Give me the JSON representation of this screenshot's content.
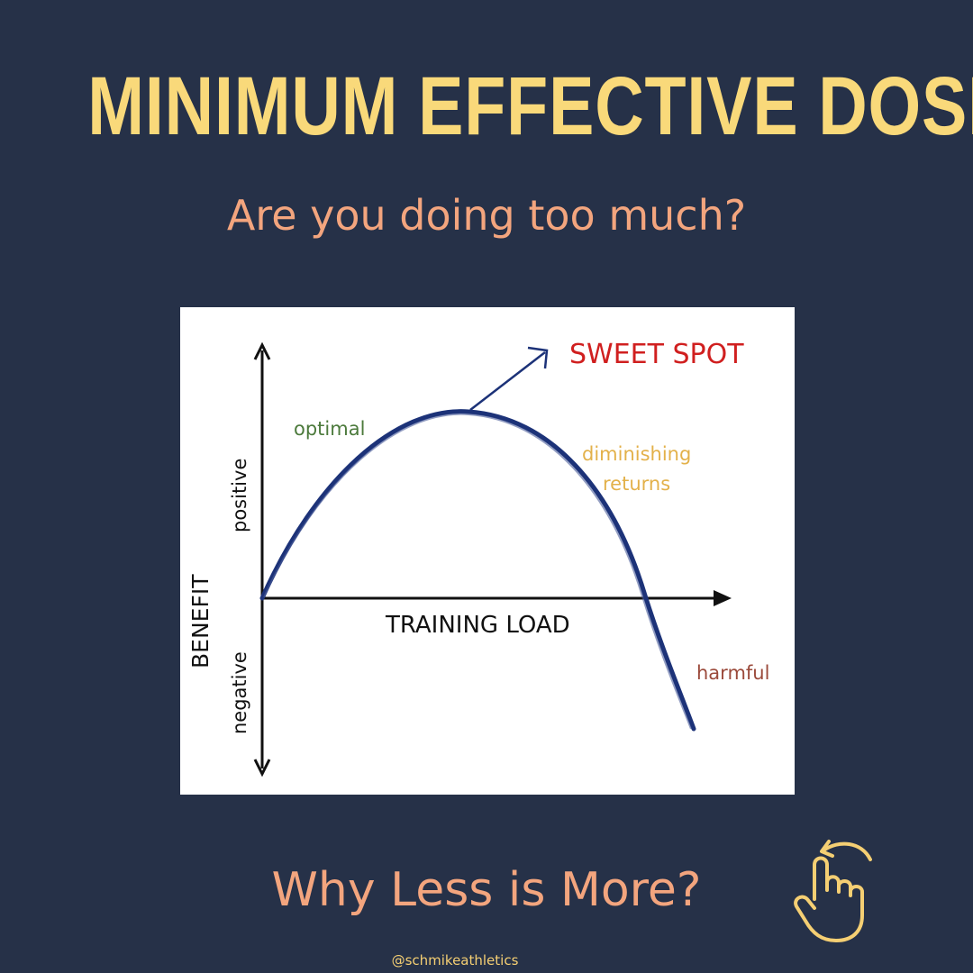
{
  "header": {
    "title": "MINIMUM EFFECTIVE DOSE",
    "subtitle": "Are you doing too much?"
  },
  "diagram": {
    "y_axis_label": "BENEFIT",
    "y_positive_label": "positive",
    "y_negative_label": "negative",
    "x_axis_label": "TRAINING LOAD",
    "zones": {
      "optimal": "optimal",
      "diminishing_line1": "diminishing",
      "diminishing_line2": "returns",
      "harmful": "harmful"
    },
    "callout": "SWEET SPOT",
    "colors": {
      "curve": "#1c3278",
      "optimal": "#4c7a3c",
      "diminishing": "#e3b14a",
      "harmful": "#9b4a3b",
      "callout": "#d01f1f"
    }
  },
  "footer": {
    "cta": "Why Less is More?",
    "handle": "@schmikeathletics",
    "icon": "swipe-hand-icon"
  },
  "colors": {
    "background": "#263148",
    "title": "#f9d97a",
    "accent": "#f3a57e"
  }
}
